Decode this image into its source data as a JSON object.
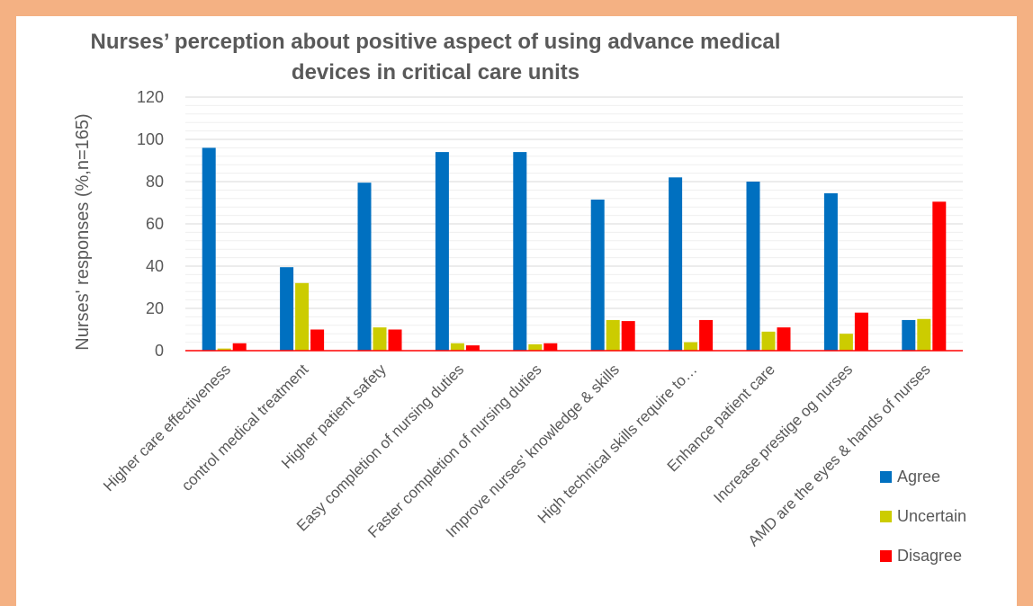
{
  "chart_data": {
    "type": "bar",
    "title_line1": "Nurses’ perception about positive aspect of using advance medical",
    "title_line2": "devices in critical care units",
    "ylabel": "Nurses' responses (%,n=165)",
    "xlabel": "",
    "ylim": [
      0,
      120
    ],
    "yticks": [
      0,
      20,
      40,
      60,
      80,
      100,
      120
    ],
    "grid": true,
    "legend_position": "bottom-right",
    "categories": [
      "Higher care effectiveness",
      "control medical treatment",
      "Higher patient safety",
      "Easy completion of nursing duties",
      "Faster completion of nursing duties",
      "Improve nurses' knowledge & skills",
      "High technical skills require to…",
      "Enhance patient care",
      "Increase prestige og nurses",
      "AMD are the eyes & hands of nurses"
    ],
    "series": [
      {
        "name": "Agree",
        "color": "#0070c0",
        "values": [
          96,
          39.5,
          79.5,
          94,
          94,
          71.5,
          82,
          80,
          74.5,
          14.5
        ]
      },
      {
        "name": "Uncertain",
        "color": "#cccc00",
        "values": [
          1,
          32,
          11,
          3.5,
          3,
          14.5,
          4,
          9,
          8,
          15
        ]
      },
      {
        "name": "Disagree",
        "color": "#ff0000",
        "values": [
          3.5,
          10,
          10,
          2.5,
          3.5,
          14,
          14.5,
          11,
          18,
          70.5
        ]
      }
    ]
  }
}
